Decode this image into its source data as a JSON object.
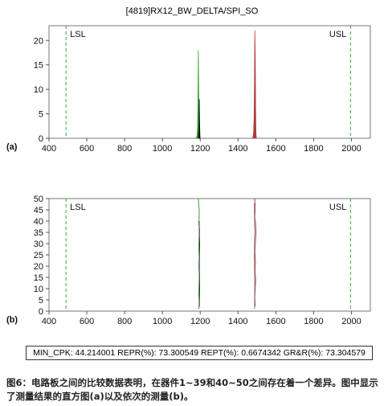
{
  "title": "[4819]RX12_BW_DELTA/SPI_SO",
  "chart_data": [
    {
      "panel_label": "(a)",
      "type": "histogram",
      "xlim": [
        400,
        2100
      ],
      "ylim": [
        0,
        23
      ],
      "x_ticks": [
        400,
        600,
        800,
        1000,
        1200,
        1400,
        1600,
        1800,
        2000
      ],
      "y_ticks": [
        0,
        5,
        10,
        15,
        20
      ],
      "spec_limits": [
        {
          "label": "LSL",
          "x": 490,
          "label_side": "right"
        },
        {
          "label": "USL",
          "x": 1995,
          "label_side": "left"
        }
      ],
      "series": [
        {
          "color": "#2fa52f",
          "points": [
            [
              1178,
              0
            ],
            [
              1183,
              0.5
            ],
            [
              1186,
              2
            ],
            [
              1188,
              8
            ],
            [
              1190,
              18
            ],
            [
              1192,
              9
            ],
            [
              1194,
              3
            ],
            [
              1196,
              1
            ],
            [
              1198,
              0
            ]
          ]
        },
        {
          "color": "#111111",
          "points": [
            [
              1190,
              0
            ],
            [
              1193,
              2
            ],
            [
              1195,
              8
            ],
            [
              1197,
              3
            ],
            [
              1199,
              0
            ]
          ]
        },
        {
          "color": "#b23a3a",
          "points": [
            [
              1478,
              0
            ],
            [
              1482,
              1
            ],
            [
              1485,
              4
            ],
            [
              1487,
              12
            ],
            [
              1489,
              22
            ],
            [
              1491,
              17
            ],
            [
              1493,
              6
            ],
            [
              1495,
              1
            ],
            [
              1497,
              0
            ]
          ]
        }
      ]
    },
    {
      "panel_label": "(b)",
      "type": "line",
      "xlim": [
        400,
        2100
      ],
      "ylim": [
        0,
        50
      ],
      "x_ticks": [
        400,
        600,
        800,
        1000,
        1200,
        1400,
        1600,
        1800,
        2000
      ],
      "y_ticks": [
        0,
        5,
        10,
        15,
        20,
        25,
        30,
        35,
        40,
        45,
        50
      ],
      "spec_limits": [
        {
          "label": "LSL",
          "x": 490,
          "label_side": "right"
        },
        {
          "label": "USL",
          "x": 1995,
          "label_side": "left"
        }
      ],
      "series": [
        {
          "color": "#2fa52f",
          "points": [
            [
              1190,
              50
            ],
            [
              1192,
              47
            ],
            [
              1195,
              44
            ],
            [
              1193,
              40
            ],
            [
              1196,
              36
            ],
            [
              1194,
              32
            ],
            [
              1192,
              28
            ],
            [
              1195,
              24
            ],
            [
              1193,
              20
            ],
            [
              1196,
              16
            ],
            [
              1194,
              12
            ],
            [
              1192,
              8
            ],
            [
              1195,
              4
            ],
            [
              1193,
              1
            ]
          ]
        },
        {
          "color": "#333333",
          "points": [
            [
              1194,
              40
            ],
            [
              1197,
              30
            ],
            [
              1195,
              20
            ],
            [
              1197,
              10
            ],
            [
              1195,
              2
            ]
          ]
        },
        {
          "color": "#b23a3a",
          "points": [
            [
              1488,
              50
            ],
            [
              1491,
              46
            ],
            [
              1489,
              42
            ],
            [
              1493,
              38
            ],
            [
              1495,
              35
            ],
            [
              1491,
              30
            ],
            [
              1489,
              26
            ],
            [
              1492,
              22
            ],
            [
              1490,
              18
            ],
            [
              1493,
              14
            ],
            [
              1491,
              10
            ],
            [
              1489,
              6
            ],
            [
              1491,
              2
            ]
          ]
        },
        {
          "color": "#888888",
          "points": [
            [
              1486,
              48
            ],
            [
              1488,
              36
            ],
            [
              1486,
              24
            ],
            [
              1488,
              12
            ],
            [
              1487,
              1
            ]
          ]
        }
      ]
    }
  ],
  "stats": "MIN_CPK: 44.214001  REPR(%): 73.300549  REPT(%): 0.6674342  GR&R(%): 73.304579",
  "caption": "图6：电路板之间的比较数据表明，在器件1~39和40~50之间存在着一个差异。图中显示了测量结果的直方图(a)以及依次的测量(b)。"
}
